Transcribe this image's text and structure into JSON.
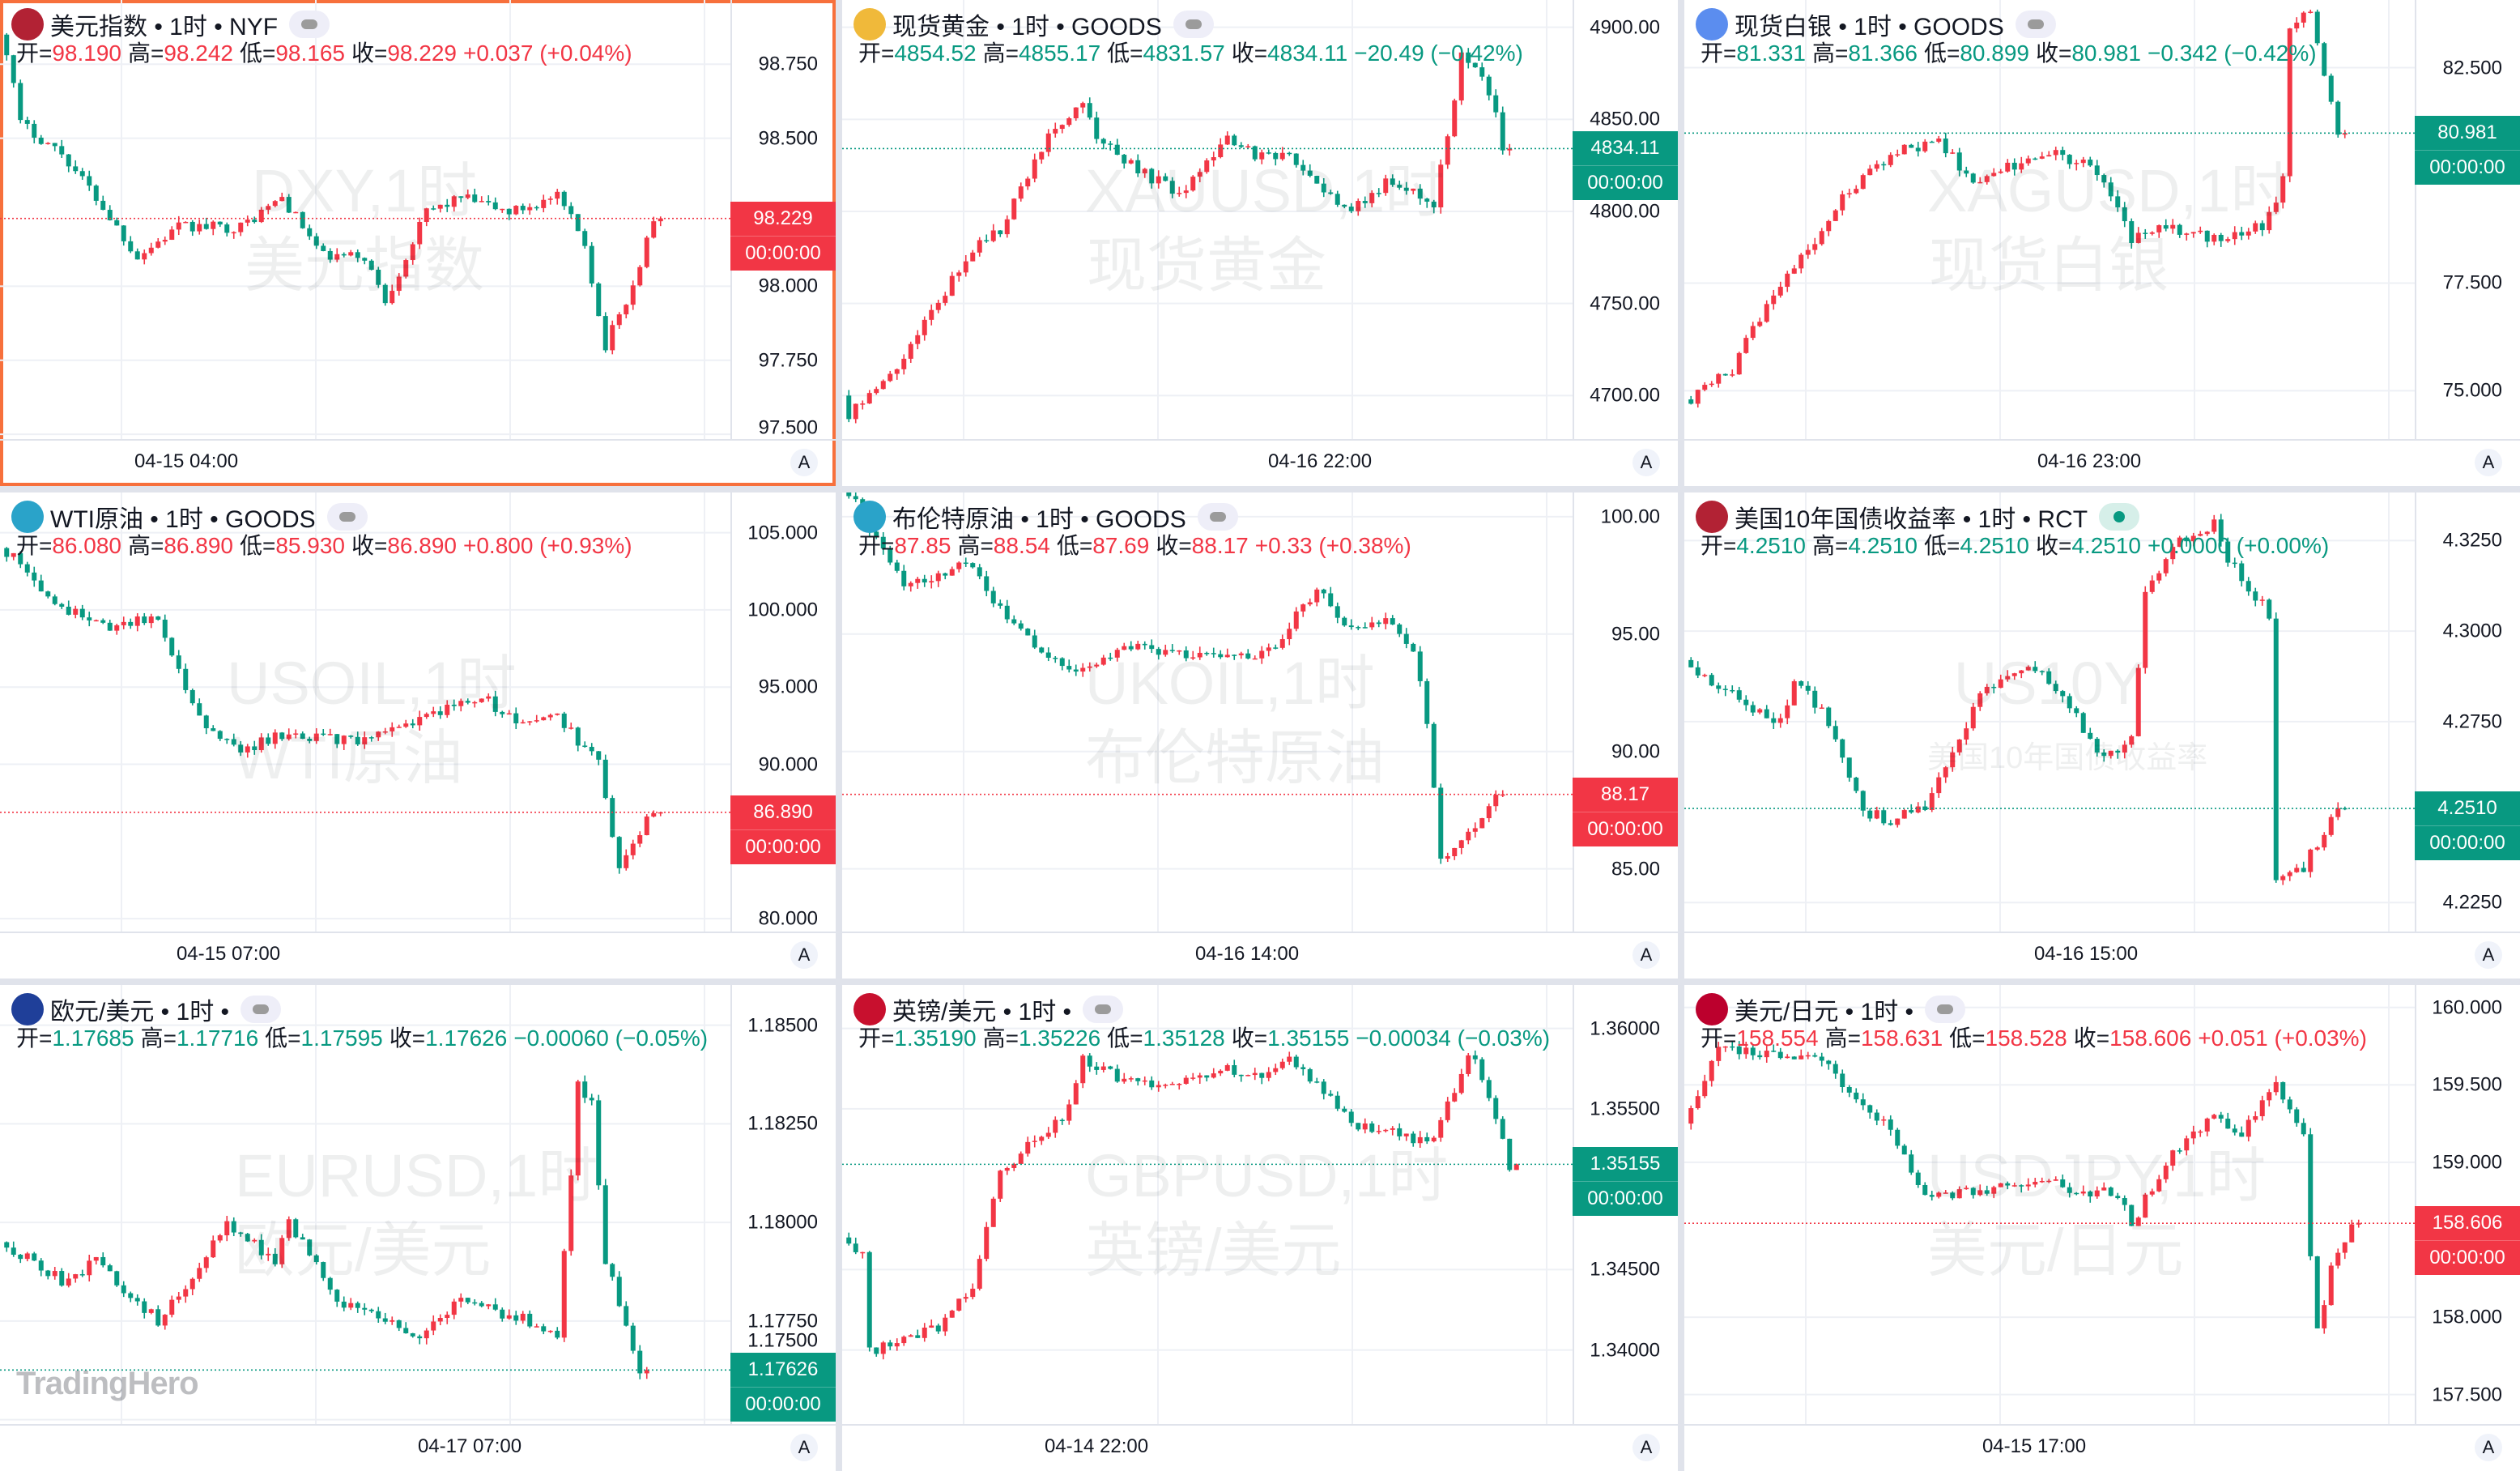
{
  "colors": {
    "up": "#f23645",
    "down": "#089981",
    "selected_border": "#f7703c"
  },
  "labels": {
    "open": "开=",
    "high": "高=",
    "low": "低=",
    "close": "收=",
    "countdown": "00:00:00",
    "auto": "A"
  },
  "logo": "TradingHero",
  "panels": [
    {
      "title": "美元指数 • 1时 • NYF",
      "icon": "us-flag-icon",
      "icon_color": "#b22234",
      "badge": "idle",
      "open": "98.190",
      "high": "98.242",
      "low": "98.165",
      "close": "98.229",
      "change": "+0.037 (+0.04%)",
      "dir": "up",
      "watermark": [
        "DXY,1时",
        "美元指数"
      ],
      "time_label": "04-15 04:00",
      "yrange": [
        97.484,
        98.967
      ],
      "ticks": [
        "98.750",
        "98.500",
        "98.000",
        "97.750",
        "97.500"
      ],
      "last": 98.229,
      "last_label": "98.229",
      "candles": 96,
      "trend": [
        [
          0,
          98.85
        ],
        [
          1,
          98.8
        ],
        [
          3,
          98.55
        ],
        [
          9,
          98.45
        ],
        [
          14,
          98.3
        ],
        [
          20,
          98.1
        ],
        [
          26,
          98.2
        ],
        [
          35,
          98.2
        ],
        [
          41,
          98.3
        ],
        [
          47,
          98.1
        ],
        [
          53,
          98.1
        ],
        [
          56,
          97.95
        ],
        [
          62,
          98.25
        ],
        [
          67,
          98.3
        ],
        [
          74,
          98.25
        ],
        [
          81,
          98.3
        ],
        [
          85,
          98.15
        ],
        [
          87,
          97.9
        ],
        [
          88,
          97.8
        ],
        [
          92,
          98.0
        ],
        [
          95,
          98.229
        ]
      ]
    },
    {
      "title": "现货黄金 • 1时 • GOODS",
      "icon": "gold-icon",
      "icon_color": "#f0b93a",
      "badge": "idle",
      "open": "4854.52",
      "high": "4855.17",
      "low": "4831.57",
      "close": "4834.11",
      "change": "−20.49 (−0.42%)",
      "dir": "down",
      "watermark": [
        "XAUUSD,1时",
        "现货黄金"
      ],
      "time_label": "04-16 22:00",
      "yrange": [
        4676.4,
        4914.8
      ],
      "ticks": [
        "4900.00",
        "4850.00",
        "4800.00",
        "4750.00",
        "4700.00"
      ],
      "last": 4834.11,
      "last_label": "4834.11",
      "candles": 97,
      "trend": [
        [
          0,
          4700
        ],
        [
          1,
          4690
        ],
        [
          7,
          4710
        ],
        [
          12,
          4740
        ],
        [
          19,
          4780
        ],
        [
          23,
          4790
        ],
        [
          30,
          4840
        ],
        [
          35,
          4860
        ],
        [
          37,
          4840
        ],
        [
          44,
          4820
        ],
        [
          49,
          4810
        ],
        [
          56,
          4840
        ],
        [
          60,
          4830
        ],
        [
          65,
          4830
        ],
        [
          70,
          4810
        ],
        [
          74,
          4800
        ],
        [
          79,
          4815
        ],
        [
          86,
          4805
        ],
        [
          88,
          4840
        ],
        [
          90,
          4885
        ],
        [
          93,
          4875
        ],
        [
          95,
          4855
        ],
        [
          96,
          4834.11
        ]
      ]
    },
    {
      "title": "现货白银 • 1时 • GOODS",
      "icon": "silver-icon",
      "icon_color": "#5b8def",
      "badge": "idle",
      "open": "81.331",
      "high": "81.366",
      "low": "80.899",
      "close": "80.981",
      "change": "−0.342 (−0.42%)",
      "dir": "down",
      "watermark": [
        "XAGUSD,1时",
        "现货白银"
      ],
      "time_label": "04-16 23:00",
      "yrange": [
        73.88,
        84.07
      ],
      "ticks": [
        "82.500",
        "77.500",
        "75.000"
      ],
      "last": 80.981,
      "last_label": "80.981",
      "candles": 96,
      "trend": [
        [
          0,
          74.8
        ],
        [
          1,
          74.8
        ],
        [
          7,
          75.5
        ],
        [
          12,
          77
        ],
        [
          19,
          78.5
        ],
        [
          23,
          79.5
        ],
        [
          30,
          80.5
        ],
        [
          37,
          80.8
        ],
        [
          42,
          79.8
        ],
        [
          47,
          80.2
        ],
        [
          53,
          80.6
        ],
        [
          60,
          80.1
        ],
        [
          65,
          78.5
        ],
        [
          70,
          78.8
        ],
        [
          77,
          78.5
        ],
        [
          84,
          78.8
        ],
        [
          86,
          79.5
        ],
        [
          87,
          80
        ],
        [
          88,
          83.5
        ],
        [
          91,
          83.8
        ],
        [
          95,
          80.981
        ]
      ]
    },
    {
      "title": "WTI原油 • 1时 • GOODS",
      "icon": "oil-icon",
      "icon_color": "#2aa3c9",
      "badge": "idle",
      "open": "86.080",
      "high": "86.890",
      "low": "85.930",
      "close": "86.890",
      "change": "+0.800 (+0.93%)",
      "dir": "up",
      "watermark": [
        "USOIL,1时",
        "WTI原油"
      ],
      "time_label": "04-15 07:00",
      "yrange": [
        79.17,
        107.6
      ],
      "ticks": [
        "105.000",
        "100.000",
        "95.000",
        "90.000",
        "80.000"
      ],
      "last": 86.89,
      "last_label": "86.890",
      "candles": 96,
      "trend": [
        [
          0,
          104
        ],
        [
          3,
          103
        ],
        [
          9,
          100
        ],
        [
          16,
          99
        ],
        [
          23,
          99.5
        ],
        [
          26,
          96
        ],
        [
          30,
          92
        ],
        [
          35,
          91
        ],
        [
          42,
          92
        ],
        [
          51,
          91.5
        ],
        [
          58,
          92.5
        ],
        [
          70,
          94.5
        ],
        [
          74,
          93
        ],
        [
          81,
          93
        ],
        [
          85,
          91
        ],
        [
          87,
          90
        ],
        [
          90,
          83
        ],
        [
          92,
          85
        ],
        [
          95,
          86.89
        ]
      ]
    },
    {
      "title": "布伦特原油 • 1时 • GOODS",
      "icon": "oil-icon",
      "icon_color": "#2aa3c9",
      "badge": "idle",
      "open": "87.85",
      "high": "88.54",
      "low": "87.69",
      "close": "88.17",
      "change": "+0.33 (+0.38%)",
      "dir": "up",
      "watermark": [
        "UKOIL,1时",
        "布伦特原油"
      ],
      "time_label": "04-16 14:00",
      "yrange": [
        82.33,
        101.03
      ],
      "ticks": [
        "100.00",
        "95.00",
        "90.00",
        "85.00"
      ],
      "last": 88.17,
      "last_label": "88.17",
      "candles": 96,
      "trend": [
        [
          0,
          101.5
        ],
        [
          1,
          101
        ],
        [
          5,
          99
        ],
        [
          9,
          97
        ],
        [
          14,
          97.5
        ],
        [
          19,
          98
        ],
        [
          23,
          96
        ],
        [
          30,
          94
        ],
        [
          35,
          93.5
        ],
        [
          42,
          94.5
        ],
        [
          51,
          94
        ],
        [
          58,
          94
        ],
        [
          63,
          94.5
        ],
        [
          69,
          97
        ],
        [
          72,
          95.5
        ],
        [
          79,
          95.5
        ],
        [
          83,
          94.5
        ],
        [
          85,
          91
        ],
        [
          87,
          85.5
        ],
        [
          90,
          86
        ],
        [
          95,
          88.17
        ]
      ]
    },
    {
      "title": "美国10年国债收益率 • 1时 • RCT",
      "icon": "us-flag-icon",
      "icon_color": "#b22234",
      "badge": "live",
      "open": "4.2510",
      "high": "4.2510",
      "low": "4.2510",
      "close": "4.2510",
      "change": "+0.0000 (+0.00%)",
      "dir": "down",
      "watermark": [
        "US10Y",
        "美国10年国债收益率"
      ],
      "time_label": "04-16 15:00",
      "yrange": [
        4.217,
        4.3383
      ],
      "ticks": [
        "4.3250",
        "4.3000",
        "4.2750",
        "4.2250"
      ],
      "last": 4.251,
      "last_label": "4.2510",
      "candles": 96,
      "trend": [
        [
          0,
          4.292
        ],
        [
          5,
          4.285
        ],
        [
          9,
          4.28
        ],
        [
          14,
          4.275
        ],
        [
          16,
          4.287
        ],
        [
          21,
          4.275
        ],
        [
          26,
          4.25
        ],
        [
          30,
          4.248
        ],
        [
          35,
          4.252
        ],
        [
          40,
          4.27
        ],
        [
          44,
          4.285
        ],
        [
          51,
          4.29
        ],
        [
          56,
          4.28
        ],
        [
          60,
          4.265
        ],
        [
          65,
          4.27
        ],
        [
          67,
          4.31
        ],
        [
          72,
          4.325
        ],
        [
          77,
          4.33
        ],
        [
          79,
          4.32
        ],
        [
          83,
          4.31
        ],
        [
          85,
          4.305
        ],
        [
          86,
          4.23
        ],
        [
          90,
          4.235
        ],
        [
          95,
          4.251
        ]
      ]
    },
    {
      "title": "欧元/美元 • 1时 •",
      "icon": "eu-us-flag-icon",
      "icon_color": "#1f3f99",
      "badge": "idle",
      "open": "1.17685",
      "high": "1.17716",
      "low": "1.17595",
      "close": "1.17626",
      "change": "−0.00060 (−0.05%)",
      "dir": "down",
      "watermark": [
        "EURUSD,1时",
        "欧元/美元"
      ],
      "time_label": "04-17 07:00",
      "yrange": [
        1.17489,
        1.18602
      ],
      "ticks": [
        "1.18500",
        "1.18250",
        "1.18000",
        "1.17750",
        "1.17500"
      ],
      "last": 1.17626,
      "last_label": "1.17626",
      "candles": 94,
      "trend": [
        [
          0,
          1.1795
        ],
        [
          5,
          1.179
        ],
        [
          9,
          1.1785
        ],
        [
          14,
          1.179
        ],
        [
          23,
          1.1775
        ],
        [
          28,
          1.1785
        ],
        [
          33,
          1.18
        ],
        [
          40,
          1.179
        ],
        [
          42,
          1.18
        ],
        [
          49,
          1.178
        ],
        [
          56,
          1.1775
        ],
        [
          60,
          1.177
        ],
        [
          67,
          1.178
        ],
        [
          77,
          1.1775
        ],
        [
          81,
          1.177
        ],
        [
          84,
          1.1835
        ],
        [
          86,
          1.183
        ],
        [
          88,
          1.179
        ],
        [
          91,
          1.1775
        ],
        [
          93,
          1.17626
        ]
      ]
    },
    {
      "title": "英镑/美元 • 1时 •",
      "icon": "uk-us-flag-icon",
      "icon_color": "#c8102e",
      "badge": "idle",
      "open": "1.35190",
      "high": "1.35226",
      "low": "1.35128",
      "close": "1.35155",
      "change": "−0.00034 (−0.03%)",
      "dir": "down",
      "watermark": [
        "GBPUSD,1时",
        "英镑/美元"
      ],
      "time_label": "04-14 22:00",
      "yrange": [
        1.3354,
        1.3627
      ],
      "ticks": [
        "1.36000",
        "1.35500",
        "1.34500",
        "1.34000"
      ],
      "last": 1.35155,
      "last_label": "1.35155",
      "candles": 98,
      "trend": [
        [
          0,
          1.347
        ],
        [
          3,
          1.346
        ],
        [
          4,
          1.34
        ],
        [
          9,
          1.3405
        ],
        [
          14,
          1.3415
        ],
        [
          19,
          1.344
        ],
        [
          21,
          1.348
        ],
        [
          23,
          1.351
        ],
        [
          28,
          1.353
        ],
        [
          33,
          1.355
        ],
        [
          35,
          1.358
        ],
        [
          40,
          1.357
        ],
        [
          47,
          1.3565
        ],
        [
          56,
          1.3575
        ],
        [
          60,
          1.357
        ],
        [
          65,
          1.358
        ],
        [
          70,
          1.356
        ],
        [
          74,
          1.354
        ],
        [
          79,
          1.3535
        ],
        [
          86,
          1.353
        ],
        [
          91,
          1.3585
        ],
        [
          93,
          1.357
        ],
        [
          97,
          1.35155
        ]
      ]
    },
    {
      "title": "美元/日元 • 1时 •",
      "icon": "us-jp-flag-icon",
      "icon_color": "#bc002d",
      "badge": "idle",
      "open": "158.554",
      "high": "158.631",
      "low": "158.528",
      "close": "158.606",
      "change": "+0.051 (+0.03%)",
      "dir": "up",
      "watermark": [
        "USDJPY,1时",
        "美元/日元"
      ],
      "time_label": "04-15 17:00",
      "yrange": [
        157.31,
        160.145
      ],
      "ticks": [
        "160.000",
        "159.500",
        "159.000",
        "158.000",
        "157.500"
      ],
      "last": 158.606,
      "last_label": "158.606",
      "candles": 98,
      "trend": [
        [
          0,
          159.25
        ],
        [
          5,
          159.75
        ],
        [
          12,
          159.7
        ],
        [
          19,
          159.7
        ],
        [
          23,
          159.5
        ],
        [
          30,
          159.2
        ],
        [
          35,
          158.8
        ],
        [
          42,
          158.8
        ],
        [
          51,
          158.9
        ],
        [
          58,
          158.8
        ],
        [
          63,
          158.8
        ],
        [
          65,
          158.6
        ],
        [
          70,
          159.0
        ],
        [
          77,
          159.3
        ],
        [
          81,
          159.2
        ],
        [
          84,
          159.4
        ],
        [
          86,
          159.5
        ],
        [
          90,
          159.2
        ],
        [
          91,
          158.4
        ],
        [
          92,
          157.9
        ],
        [
          94,
          158.3
        ],
        [
          97,
          158.606
        ]
      ]
    }
  ]
}
